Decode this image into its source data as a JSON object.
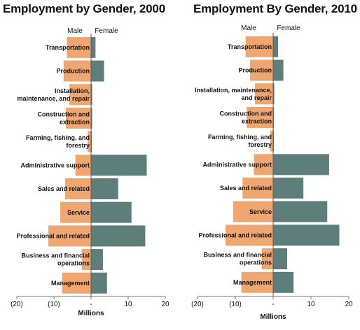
{
  "chart_data": [
    {
      "type": "bar",
      "title": "Employment by Gender, 2000",
      "xlabel": "Millions",
      "legend": [
        "Male",
        "Female"
      ],
      "xlim": [
        -20,
        20
      ],
      "xticks": [
        -20,
        -10,
        0,
        10,
        20
      ],
      "xticklabels": [
        "(20)",
        "(10)",
        "-",
        "10",
        "20"
      ],
      "categories": [
        "Transportation",
        "Production",
        "Installation, maintenance, and repair",
        "Construction and extraction",
        "Farming, fishing, and forestry",
        "Administrative support",
        "Sales and related",
        "Service",
        "Professional and related",
        "Business and financial operations",
        "Management"
      ],
      "series": [
        {
          "name": "Male",
          "values": [
            -6.5,
            -7.4,
            -5.8,
            -6.8,
            -0.9,
            -4.2,
            -7.0,
            -8.3,
            -11.5,
            -2.5,
            -7.8
          ]
        },
        {
          "name": "Female",
          "values": [
            1.2,
            3.5,
            0.3,
            0.3,
            0.2,
            15.0,
            7.3,
            10.9,
            14.6,
            3.2,
            4.3
          ]
        }
      ],
      "colors": {
        "male": "#F0A671",
        "female": "#5E7E7C"
      }
    },
    {
      "type": "bar",
      "title": "Employment By Gender, 2010",
      "xlabel": "Millions",
      "legend": [
        "Male",
        "Female"
      ],
      "xlim": [
        -20,
        20
      ],
      "xticks": [
        -20,
        -10,
        0,
        10,
        20
      ],
      "xticklabels": [
        "(20)",
        "(10)",
        "-",
        "10",
        "20"
      ],
      "categories": [
        "Transportation",
        "Production",
        "Installation, maintenance, and repair",
        "Construction and extraction",
        "Farming, fishing, and forestry",
        "Administrative support",
        "Sales and related",
        "Service",
        "Professional and related",
        "Business and financial operations",
        "Management"
      ],
      "series": [
        {
          "name": "Male",
          "values": [
            -7.3,
            -6.1,
            -4.8,
            -7.0,
            -0.8,
            -5.1,
            -8.1,
            -10.6,
            -12.6,
            -3.0,
            -8.4
          ]
        },
        {
          "name": "Female",
          "values": [
            1.3,
            2.7,
            0.3,
            0.2,
            0.2,
            14.8,
            8.0,
            14.3,
            17.5,
            3.7,
            5.4
          ]
        }
      ],
      "colors": {
        "male": "#F0A671",
        "female": "#5E7E7C"
      }
    }
  ]
}
